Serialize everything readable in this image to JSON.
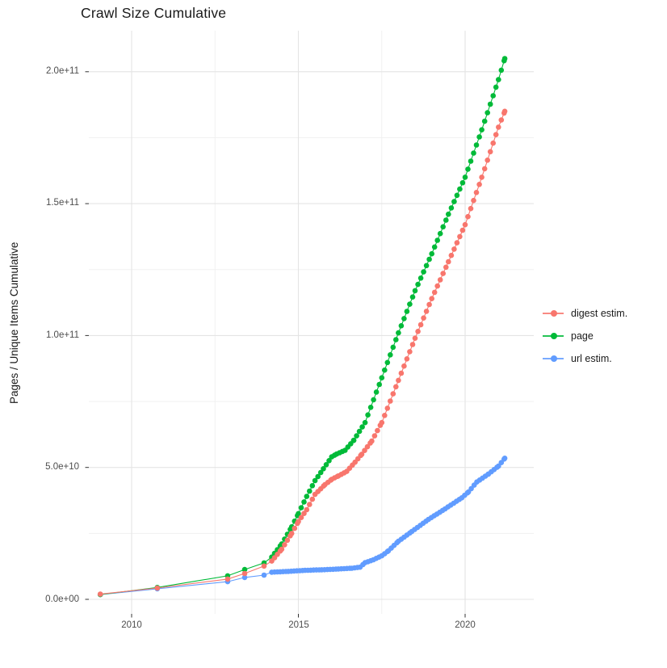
{
  "title": "Crawl Size Cumulative",
  "y_axis": {
    "label": "Pages / Unique Items Cumulative",
    "ticks": [
      "0.0e+00",
      "5.0e+10",
      "1.0e+11",
      "1.5e+11",
      "2.0e+11"
    ],
    "tick_values": [
      0,
      50000000000.0,
      100000000000.0,
      150000000000.0,
      200000000000.0
    ]
  },
  "x_axis": {
    "ticks": [
      "2010",
      "2015",
      "2020"
    ],
    "tick_values": [
      2010,
      2015,
      2020
    ],
    "minor_values": [
      2012.5,
      2017.5
    ]
  },
  "legend": {
    "items": [
      {
        "label": "digest estim.",
        "color": "#F8766D",
        "series": "digest"
      },
      {
        "label": "page",
        "color": "#00BA38",
        "series": "page"
      },
      {
        "label": "url estim.",
        "color": "#619CFF",
        "series": "url"
      }
    ]
  },
  "colors": {
    "digest": "#F8766D",
    "page": "#00BA38",
    "url": "#619CFF",
    "grid_major": "#E4E4E4",
    "grid_minor": "#F1F1F1",
    "tick_mark": "#333333",
    "text": "#4d4d4d"
  },
  "chart_data": {
    "type": "scatter",
    "title": "Crawl Size Cumulative",
    "xlabel": "",
    "ylabel": "Pages / Unique Items Cumulative",
    "x_range": [
      2008.7,
      2022.0
    ],
    "ylim": [
      0,
      215000000000.0
    ],
    "grid": true,
    "legend_position": "right",
    "points_connected": true,
    "sparse_until_year": 2014.1,
    "monthly_step_years": 0.085,
    "series": [
      {
        "name": "url estim.",
        "color": "#619CFF",
        "points": [
          [
            2009.06,
            1800000000.0
          ],
          [
            2010.77,
            4000000000.0
          ],
          [
            2012.88,
            6700000000.0
          ],
          [
            2013.39,
            8300000000.0
          ],
          [
            2013.97,
            9200000000.0
          ],
          [
            2014.2,
            10300000000.0
          ],
          [
            2014.7,
            10600000000.0
          ],
          [
            2015.2,
            11000000000.0
          ],
          [
            2015.7,
            11200000000.0
          ],
          [
            2016.2,
            11500000000.0
          ],
          [
            2016.6,
            11800000000.0
          ],
          [
            2016.85,
            12200000000.0
          ],
          [
            2017.0,
            13900000000.0
          ],
          [
            2017.25,
            15000000000.0
          ],
          [
            2017.5,
            16500000000.0
          ],
          [
            2017.7,
            18400000000.0
          ],
          [
            2018.0,
            22000000000.0
          ],
          [
            2018.4,
            25700000000.0
          ],
          [
            2018.9,
            30300000000.0
          ],
          [
            2019.4,
            34300000000.0
          ],
          [
            2019.9,
            38500000000.0
          ],
          [
            2020.1,
            40700000000.0
          ],
          [
            2020.35,
            44500000000.0
          ],
          [
            2020.7,
            47500000000.0
          ],
          [
            2021.0,
            50500000000.0
          ],
          [
            2021.19,
            53500000000.0
          ]
        ]
      },
      {
        "name": "page",
        "color": "#00BA38",
        "points": [
          [
            2009.06,
            1800000000.0
          ],
          [
            2010.77,
            4500000000.0
          ],
          [
            2012.88,
            8900000000.0
          ],
          [
            2013.39,
            11300000000.0
          ],
          [
            2013.97,
            13800000000.0
          ],
          [
            2014.2,
            16000000000.0
          ],
          [
            2014.5,
            21000000000.0
          ],
          [
            2014.8,
            27500000000.0
          ],
          [
            2015.0,
            32500000000.0
          ],
          [
            2015.25,
            39000000000.0
          ],
          [
            2015.5,
            45000000000.0
          ],
          [
            2015.75,
            49500000000.0
          ],
          [
            2016.0,
            54000000000.0
          ],
          [
            2016.15,
            55100000000.0
          ],
          [
            2016.4,
            56500000000.0
          ],
          [
            2016.66,
            60300000000.0
          ],
          [
            2017.0,
            67000000000.0
          ],
          [
            2017.5,
            84000000000.0
          ],
          [
            2018.0,
            101000000000.0
          ],
          [
            2018.5,
            117000000000.0
          ],
          [
            2019.0,
            131000000000.0
          ],
          [
            2019.5,
            146000000000.0
          ],
          [
            2020.0,
            160000000000.0
          ],
          [
            2020.5,
            178000000000.0
          ],
          [
            2021.0,
            197000000000.0
          ],
          [
            2021.19,
            205000000000.0
          ]
        ]
      },
      {
        "name": "digest estim.",
        "color": "#F8766D",
        "points": [
          [
            2009.06,
            2000000000.0
          ],
          [
            2010.77,
            4300000000.0
          ],
          [
            2012.88,
            7700000000.0
          ],
          [
            2013.39,
            9800000000.0
          ],
          [
            2013.97,
            12600000000.0
          ],
          [
            2014.2,
            14500000000.0
          ],
          [
            2014.5,
            19000000000.0
          ],
          [
            2014.8,
            25000000000.0
          ],
          [
            2015.0,
            29500000000.0
          ],
          [
            2015.25,
            34000000000.0
          ],
          [
            2015.5,
            39800000000.0
          ],
          [
            2015.8,
            43500000000.0
          ],
          [
            2016.0,
            45500000000.0
          ],
          [
            2016.2,
            46800000000.0
          ],
          [
            2016.45,
            48500000000.0
          ],
          [
            2016.7,
            52000000000.0
          ],
          [
            2016.9,
            55000000000.0
          ],
          [
            2017.2,
            60000000000.0
          ],
          [
            2017.5,
            67000000000.0
          ],
          [
            2018.0,
            83000000000.0
          ],
          [
            2018.5,
            99000000000.0
          ],
          [
            2019.0,
            114000000000.0
          ],
          [
            2019.5,
            128000000000.0
          ],
          [
            2020.0,
            142000000000.0
          ],
          [
            2020.5,
            160000000000.0
          ],
          [
            2021.0,
            179000000000.0
          ],
          [
            2021.19,
            185000000000.0
          ]
        ]
      }
    ]
  }
}
